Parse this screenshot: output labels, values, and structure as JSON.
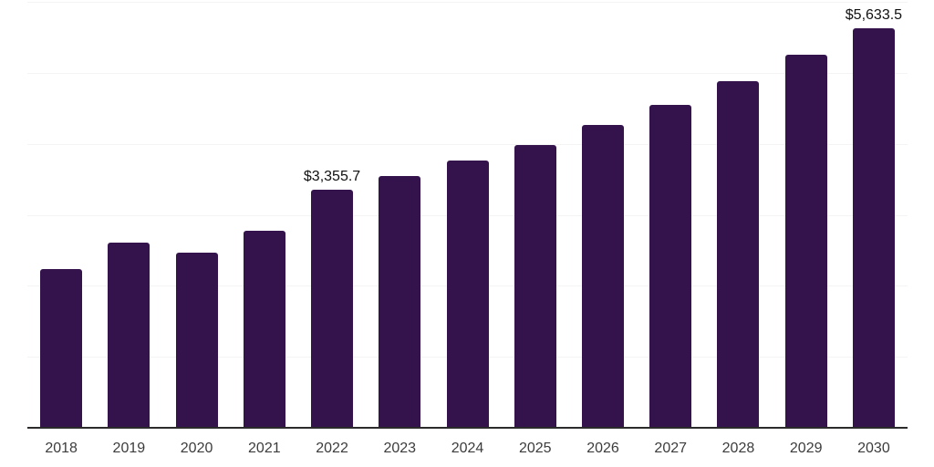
{
  "chart_data": {
    "type": "bar",
    "title": "",
    "xlabel": "",
    "ylabel": "",
    "categories": [
      "2018",
      "2019",
      "2020",
      "2021",
      "2022",
      "2023",
      "2024",
      "2025",
      "2026",
      "2027",
      "2028",
      "2029",
      "2030"
    ],
    "values": [
      2240,
      2605,
      2465,
      2775,
      3355.7,
      3545,
      3765,
      3985,
      4260,
      4550,
      4880,
      5250,
      5633.5
    ],
    "annotations": [
      {
        "index": 4,
        "category": "2022",
        "text": "$3,355.7"
      },
      {
        "index": 12,
        "category": "2030",
        "text": "$5,633.5"
      }
    ],
    "ylim": [
      0,
      6000
    ],
    "gridline_interval": 1000,
    "grid": "horizontal",
    "legend": "none",
    "y_tick_labels_visible": false,
    "colors": {
      "bar": "#34134d",
      "axis_line": "#2b2b2b",
      "gridline": "#f4f4f4",
      "tick_label": "#3c3c3c",
      "data_label": "#111111",
      "background": "#ffffff"
    }
  }
}
